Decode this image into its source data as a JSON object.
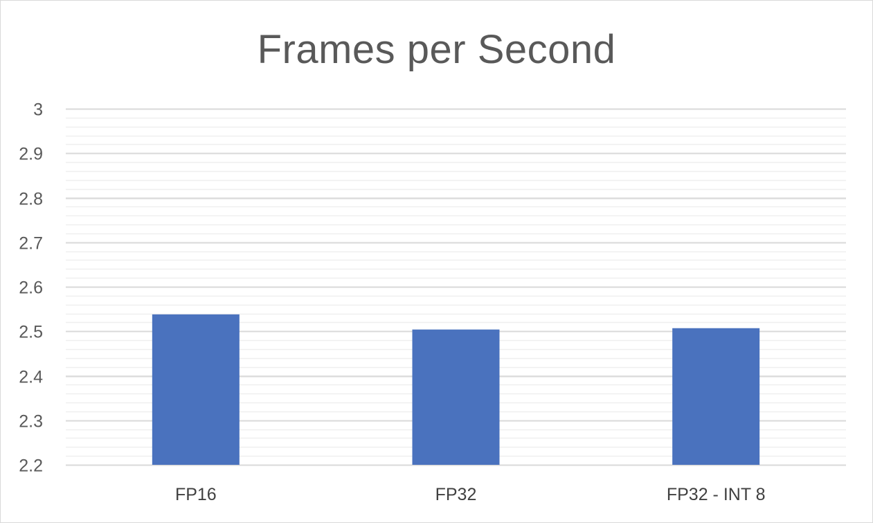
{
  "chart_data": {
    "type": "bar",
    "title": "Frames per Second",
    "xlabel": "",
    "ylabel": "",
    "categories": [
      "FP16",
      "FP32",
      "FP32 - INT 8"
    ],
    "values": [
      2.538,
      2.504,
      2.507
    ],
    "ylim": [
      2.2,
      3.0
    ],
    "y_ticks": [
      "2.2",
      "2.3",
      "2.4",
      "2.5",
      "2.6",
      "2.7",
      "2.8",
      "2.9",
      "3"
    ],
    "grid": true,
    "legend": "none",
    "bar_color": "#4a72be",
    "grid_color": "#d9d9d9",
    "minor_grid_color": "#efefef"
  }
}
